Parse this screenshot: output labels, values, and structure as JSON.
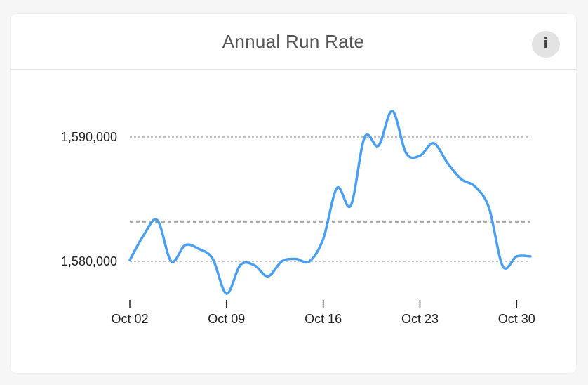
{
  "card": {
    "title": "Annual Run Rate",
    "info_label": "i"
  },
  "colors": {
    "line": "#4a9ff0",
    "grid": "#b0b0b0",
    "reference": "#a8a8a8",
    "background": "#ffffff"
  },
  "chart_data": {
    "type": "line",
    "title": "Annual Run Rate",
    "xlabel": "",
    "ylabel": "",
    "x_range": [
      "2023-10-02",
      "2023-10-31"
    ],
    "ylim": [
      1577000,
      1592000
    ],
    "yticks": [
      1580000,
      1590000
    ],
    "ytick_labels": [
      "1,580,000",
      "1,590,000"
    ],
    "xticks": [
      "2023-10-02",
      "2023-10-09",
      "2023-10-16",
      "2023-10-23",
      "2023-10-30"
    ],
    "xtick_labels": [
      "Oct 02",
      "Oct 09",
      "Oct 16",
      "Oct 23",
      "Oct 30"
    ],
    "reference_line": 1583200,
    "grid": true,
    "series": [
      {
        "x": [
          "2023-10-02",
          "2023-10-03",
          "2023-10-04",
          "2023-10-05",
          "2023-10-06",
          "2023-10-07",
          "2023-10-08",
          "2023-10-09",
          "2023-10-10",
          "2023-10-11",
          "2023-10-12",
          "2023-10-13",
          "2023-10-14",
          "2023-10-15",
          "2023-10-16",
          "2023-10-17",
          "2023-10-18",
          "2023-10-19",
          "2023-10-20",
          "2023-10-21",
          "2023-10-22",
          "2023-10-23",
          "2023-10-24",
          "2023-10-25",
          "2023-10-26",
          "2023-10-27",
          "2023-10-28",
          "2023-10-29",
          "2023-10-30",
          "2023-10-31"
        ],
        "values": [
          1580100,
          1582100,
          1583300,
          1580000,
          1581300,
          1581000,
          1580200,
          1577400,
          1579700,
          1579700,
          1578800,
          1580000,
          1580200,
          1580000,
          1581800,
          1585900,
          1584500,
          1590000,
          1589300,
          1592100,
          1588700,
          1588500,
          1589500,
          1587900,
          1586600,
          1586000,
          1584300,
          1579600,
          1580400,
          1580400
        ]
      }
    ]
  }
}
